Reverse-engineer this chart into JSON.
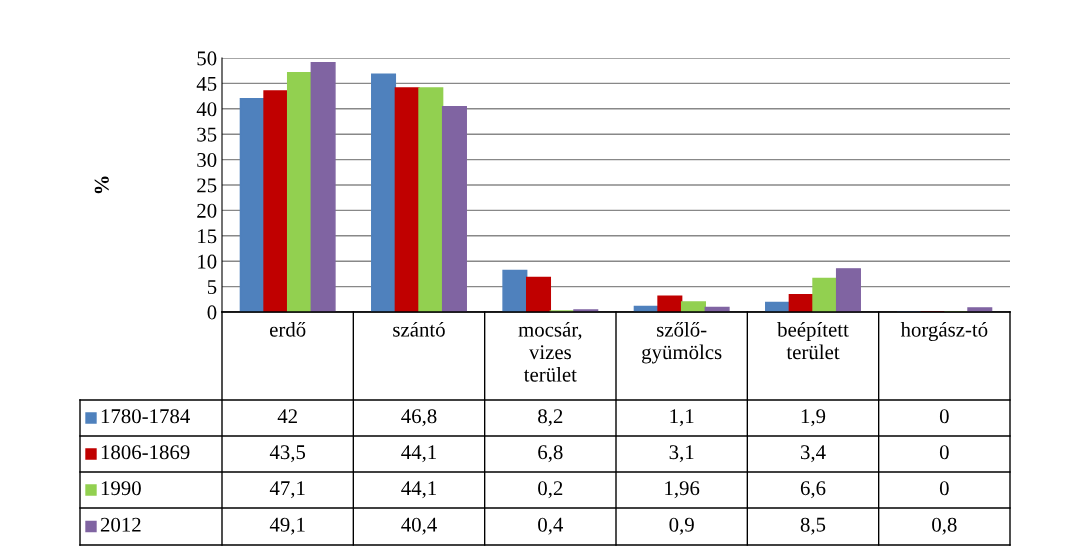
{
  "chart_data": {
    "type": "bar",
    "ylabel": "%",
    "categories": [
      "erdő",
      "szántó",
      "mocsár,\nvizes\nterület",
      "szőlő-\ngyümölcs",
      "beépített\nterület",
      "horgász-tó"
    ],
    "series": [
      {
        "name": "1780-1784",
        "color": "#4f81bd",
        "values": [
          42,
          46.8,
          8.2,
          1.1,
          1.9,
          0
        ],
        "value_labels": [
          "42",
          "46,8",
          "8,2",
          "1,1",
          "1,9",
          "0"
        ]
      },
      {
        "name": "1806-1869",
        "color": "#c00000",
        "values": [
          43.5,
          44.1,
          6.8,
          3.1,
          3.4,
          0
        ],
        "value_labels": [
          "43,5",
          "44,1",
          "6,8",
          "3,1",
          "3,4",
          "0"
        ]
      },
      {
        "name": "1990",
        "color": "#92d050",
        "values": [
          47.1,
          44.1,
          0.2,
          1.96,
          6.6,
          0
        ],
        "value_labels": [
          "47,1",
          "44,1",
          "0,2",
          "1,96",
          "6,6",
          "0"
        ]
      },
      {
        "name": "2012",
        "color": "#8064a2",
        "values": [
          49.1,
          40.4,
          0.4,
          0.9,
          8.5,
          0.8
        ],
        "value_labels": [
          "49,1",
          "40,4",
          "0,4",
          "0,9",
          "8,5",
          "0,8"
        ]
      }
    ],
    "ylim": [
      0,
      50
    ],
    "yticks": [
      0,
      5,
      10,
      15,
      20,
      25,
      30,
      35,
      40,
      45,
      50
    ],
    "grid": "y",
    "legend": "bottom"
  }
}
